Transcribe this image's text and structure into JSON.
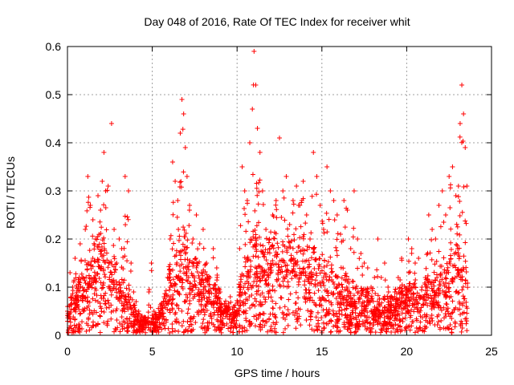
{
  "chart_data": {
    "type": "scatter",
    "title": "Day 048 of 2016, Rate Of TEC Index for receiver whit",
    "xlabel": "GPS time / hours",
    "ylabel": "ROTI / TECUs",
    "xlim": [
      0,
      25
    ],
    "ylim": [
      0,
      0.6
    ],
    "grid": true,
    "marker": "+",
    "series": [
      {
        "name": "ROTI",
        "color": "#ff0000",
        "x": [
          0.0,
          0.15,
          0.3,
          0.45,
          0.6,
          0.75,
          0.9,
          1.05,
          1.2,
          1.35,
          1.5,
          1.65,
          1.8,
          1.95,
          2.05,
          2.15,
          2.25,
          2.4,
          2.6,
          2.75,
          2.9,
          3.05,
          3.2,
          3.4,
          3.6,
          3.75,
          3.9,
          4.05,
          4.2,
          4.4,
          4.6,
          4.8,
          4.95,
          5.1,
          5.3,
          5.5,
          5.7,
          5.9,
          6.05,
          6.2,
          6.35,
          6.5,
          6.65,
          6.75,
          6.85,
          6.95,
          7.05,
          7.2,
          7.4,
          7.6,
          7.8,
          8.0,
          8.2,
          8.4,
          8.6,
          8.8,
          9.0,
          9.2,
          9.4,
          9.6,
          9.8,
          10.0,
          10.15,
          10.3,
          10.45,
          10.6,
          10.75,
          10.9,
          11.0,
          11.1,
          11.2,
          11.35,
          11.5,
          11.7,
          11.9,
          12.1,
          12.3,
          12.5,
          12.7,
          12.9,
          13.1,
          13.3,
          13.5,
          13.7,
          13.9,
          14.1,
          14.3,
          14.5,
          14.7,
          14.9,
          15.1,
          15.3,
          15.5,
          15.7,
          15.9,
          16.1,
          16.3,
          16.5,
          16.7,
          16.9,
          17.1,
          17.3,
          17.5,
          17.7,
          17.9,
          18.1,
          18.3,
          18.5,
          18.7,
          18.9,
          19.1,
          19.3,
          19.5,
          19.7,
          19.9,
          20.1,
          20.3,
          20.5,
          20.7,
          20.9,
          21.1,
          21.3,
          21.5,
          21.7,
          21.9,
          22.1,
          22.3,
          22.5,
          22.7,
          22.9,
          23.05,
          23.15,
          23.25,
          23.35,
          23.45,
          23.55
        ],
        "y": [
          0.05,
          0.13,
          0.1,
          0.16,
          0.08,
          0.19,
          0.12,
          0.22,
          0.33,
          0.27,
          0.24,
          0.2,
          0.29,
          0.26,
          0.32,
          0.38,
          0.3,
          0.31,
          0.44,
          0.22,
          0.15,
          0.2,
          0.18,
          0.33,
          0.3,
          0.15,
          0.09,
          0.07,
          0.05,
          0.04,
          0.03,
          0.09,
          0.15,
          0.05,
          0.04,
          0.06,
          0.08,
          0.12,
          0.2,
          0.36,
          0.32,
          0.28,
          0.42,
          0.49,
          0.46,
          0.39,
          0.33,
          0.27,
          0.2,
          0.25,
          0.19,
          0.22,
          0.15,
          0.12,
          0.18,
          0.14,
          0.09,
          0.05,
          0.06,
          0.08,
          0.06,
          0.04,
          0.18,
          0.35,
          0.3,
          0.28,
          0.4,
          0.47,
          0.59,
          0.52,
          0.43,
          0.38,
          0.3,
          0.22,
          0.2,
          0.25,
          0.28,
          0.41,
          0.3,
          0.33,
          0.23,
          0.28,
          0.31,
          0.27,
          0.32,
          0.25,
          0.2,
          0.38,
          0.33,
          0.27,
          0.22,
          0.35,
          0.3,
          0.28,
          0.25,
          0.21,
          0.28,
          0.26,
          0.18,
          0.3,
          0.2,
          0.17,
          0.15,
          0.14,
          0.1,
          0.12,
          0.2,
          0.12,
          0.15,
          0.1,
          0.08,
          0.09,
          0.12,
          0.16,
          0.07,
          0.2,
          0.18,
          0.15,
          0.16,
          0.1,
          0.12,
          0.25,
          0.22,
          0.2,
          0.27,
          0.3,
          0.25,
          0.33,
          0.35,
          0.29,
          0.31,
          0.44,
          0.52,
          0.46,
          0.39,
          0.31
        ],
        "baseline_x": [
          0.1,
          0.3,
          0.5,
          0.7,
          0.9,
          1.1,
          1.3,
          1.5,
          1.7,
          1.9,
          2.1,
          2.3,
          2.5,
          2.7,
          2.9,
          3.1,
          3.3,
          3.5,
          3.7,
          3.9,
          4.1,
          4.3,
          4.5,
          4.7,
          4.9,
          5.1,
          5.3,
          5.5,
          5.7,
          5.9,
          6.1,
          6.3,
          6.5,
          6.7,
          6.9,
          7.1,
          7.3,
          7.5,
          7.7,
          7.9,
          8.1,
          8.3,
          8.5,
          8.7,
          8.9,
          9.1,
          9.3,
          9.5,
          9.7,
          9.9,
          10.1,
          10.3,
          10.5,
          10.7,
          10.9,
          11.1,
          11.3,
          11.5,
          11.7,
          11.9,
          12.1,
          12.3,
          12.5,
          12.7,
          12.9,
          13.1,
          13.3,
          13.5,
          13.7,
          13.9,
          14.1,
          14.3,
          14.5,
          14.7,
          14.9,
          15.1,
          15.3,
          15.5,
          15.7,
          15.9,
          16.1,
          16.3,
          16.5,
          16.7,
          16.9,
          17.1,
          17.3,
          17.5,
          17.7,
          17.9,
          18.1,
          18.3,
          18.5,
          18.7,
          18.9,
          19.1,
          19.3,
          19.5,
          19.7,
          19.9,
          20.1,
          20.3,
          20.5,
          20.7,
          20.9,
          21.1,
          21.3,
          21.5,
          21.7,
          21.9,
          22.1,
          22.3,
          22.5,
          22.7,
          22.9,
          23.1,
          23.3,
          23.5
        ],
        "baseline_y": [
          0.04,
          0.06,
          0.05,
          0.08,
          0.07,
          0.09,
          0.11,
          0.13,
          0.1,
          0.12,
          0.14,
          0.11,
          0.09,
          0.12,
          0.08,
          0.07,
          0.09,
          0.06,
          0.05,
          0.04,
          0.03,
          0.02,
          0.02,
          0.03,
          0.02,
          0.02,
          0.03,
          0.04,
          0.05,
          0.07,
          0.09,
          0.1,
          0.12,
          0.11,
          0.13,
          0.1,
          0.09,
          0.11,
          0.08,
          0.09,
          0.07,
          0.08,
          0.06,
          0.07,
          0.05,
          0.04,
          0.05,
          0.04,
          0.03,
          0.04,
          0.05,
          0.08,
          0.1,
          0.12,
          0.14,
          0.13,
          0.11,
          0.12,
          0.13,
          0.12,
          0.14,
          0.11,
          0.12,
          0.13,
          0.12,
          0.14,
          0.13,
          0.12,
          0.11,
          0.13,
          0.12,
          0.1,
          0.12,
          0.11,
          0.1,
          0.11,
          0.09,
          0.1,
          0.08,
          0.09,
          0.07,
          0.08,
          0.07,
          0.06,
          0.07,
          0.06,
          0.06,
          0.05,
          0.06,
          0.05,
          0.04,
          0.05,
          0.04,
          0.05,
          0.04,
          0.05,
          0.06,
          0.05,
          0.07,
          0.06,
          0.07,
          0.06,
          0.07,
          0.05,
          0.06,
          0.07,
          0.08,
          0.06,
          0.08,
          0.07,
          0.09,
          0.08,
          0.1,
          0.11,
          0.12,
          0.1,
          0.09,
          0.08
        ]
      }
    ],
    "xticks": [
      "0",
      "5",
      "10",
      "15",
      "20",
      "25"
    ],
    "yticks": [
      "0",
      "0.1",
      "0.2",
      "0.3",
      "0.4",
      "0.5",
      "0.6"
    ]
  }
}
